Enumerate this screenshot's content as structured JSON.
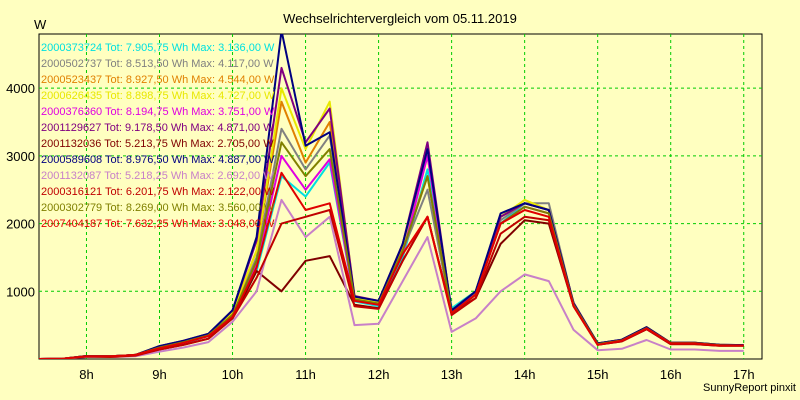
{
  "chart_data": {
    "type": "line",
    "title": "Wechselrichtervergleich vom 05.11.2019",
    "ylabel": "W",
    "xlabel": "",
    "footer": "SunnyReport pinxit",
    "grid": true,
    "legend_position": "top-left",
    "background": "#ffffc0",
    "grid_color": "#00cc00",
    "ylim": [
      0,
      4800
    ],
    "xlim": [
      7.35,
      17.25
    ],
    "yticks": [
      1000,
      2000,
      3000,
      4000
    ],
    "xticks": [
      {
        "value": 8,
        "label": "8h"
      },
      {
        "value": 9,
        "label": "9h"
      },
      {
        "value": 10,
        "label": "10h"
      },
      {
        "value": 11,
        "label": "11h"
      },
      {
        "value": 12,
        "label": "12h"
      },
      {
        "value": 13,
        "label": "13h"
      },
      {
        "value": 14,
        "label": "14h"
      },
      {
        "value": 15,
        "label": "15h"
      },
      {
        "value": 16,
        "label": "16h"
      },
      {
        "value": 17,
        "label": "17h"
      }
    ],
    "x": [
      7.33,
      7.67,
      8.0,
      8.33,
      8.67,
      9.0,
      9.33,
      9.67,
      10.0,
      10.33,
      10.67,
      11.0,
      11.33,
      11.67,
      12.0,
      12.33,
      12.67,
      13.0,
      13.33,
      13.67,
      14.0,
      14.33,
      14.67,
      15.0,
      15.33,
      15.67,
      16.0,
      16.33,
      16.67,
      17.0
    ],
    "series": [
      {
        "name": "2000373724 Tot: 7.905,75 Wh Max: 3.136,00 W",
        "color": "#00e0e0",
        "values": [
          0,
          5,
          40,
          40,
          60,
          150,
          230,
          340,
          600,
          1300,
          2700,
          2400,
          2900,
          850,
          780,
          1500,
          2800,
          750,
          1000,
          2000,
          2300,
          2200,
          800,
          220,
          270,
          450,
          230,
          230,
          200,
          200
        ]
      },
      {
        "name": "2000502737 Tot: 8.513,50 Wh Max: 4.117,00 W",
        "color": "#808080",
        "values": [
          0,
          5,
          45,
          40,
          60,
          170,
          250,
          350,
          650,
          1500,
          3400,
          2800,
          3300,
          900,
          830,
          1600,
          2500,
          680,
          950,
          2050,
          2300,
          2300,
          810,
          230,
          280,
          460,
          235,
          235,
          205,
          200
        ]
      },
      {
        "name": "2000523437 Tot: 8.927,50 Wh Max: 4.544,00 W",
        "color": "#e08000",
        "values": [
          0,
          5,
          45,
          40,
          60,
          180,
          260,
          360,
          680,
          1600,
          3800,
          2900,
          3500,
          920,
          850,
          1650,
          2700,
          690,
          980,
          2100,
          2300,
          2200,
          820,
          230,
          280,
          470,
          240,
          240,
          210,
          200
        ]
      },
      {
        "name": "2000626435 Tot: 8.898,75 Wh Max: 4.727,00 W",
        "color": "#e8e800",
        "values": [
          0,
          5,
          45,
          40,
          60,
          180,
          260,
          360,
          700,
          1600,
          4000,
          3100,
          3800,
          910,
          840,
          1600,
          3000,
          720,
          1000,
          2100,
          2350,
          2200,
          820,
          230,
          280,
          470,
          240,
          240,
          210,
          200
        ]
      },
      {
        "name": "2000376360 Tot: 8.194,75 Wh Max: 3.751,00 W",
        "color": "#e000e0",
        "values": [
          0,
          5,
          40,
          40,
          60,
          160,
          240,
          340,
          620,
          1400,
          3000,
          2500,
          2950,
          860,
          800,
          1550,
          3000,
          700,
          950,
          2000,
          2250,
          2150,
          800,
          220,
          270,
          450,
          230,
          230,
          200,
          200
        ]
      },
      {
        "name": "2001129627 Tot: 9.178,50 Wh Max: 4.871,00 W",
        "color": "#800080",
        "values": [
          0,
          5,
          45,
          40,
          60,
          190,
          270,
          370,
          720,
          1750,
          4300,
          3200,
          3700,
          930,
          860,
          1700,
          3200,
          700,
          1000,
          2100,
          2300,
          2200,
          830,
          230,
          285,
          470,
          240,
          240,
          210,
          205
        ]
      },
      {
        "name": "2001132036 Tot: 5.213,75 Wh Max: 2.705,00 W",
        "color": "#800000",
        "values": [
          0,
          5,
          30,
          30,
          50,
          140,
          210,
          300,
          600,
          1300,
          1000,
          1450,
          1520,
          800,
          750,
          1450,
          2100,
          680,
          900,
          1700,
          2050,
          2000,
          780,
          210,
          260,
          440,
          220,
          220,
          195,
          195
        ]
      },
      {
        "name": "2000589608 Tot: 8.976,50 Wh Max: 4.887,00 W",
        "color": "#000080",
        "values": [
          0,
          5,
          45,
          40,
          60,
          190,
          270,
          370,
          720,
          1800,
          4850,
          3150,
          3350,
          920,
          860,
          1700,
          3100,
          720,
          1000,
          2150,
          2300,
          2200,
          820,
          230,
          285,
          470,
          240,
          240,
          210,
          205
        ]
      },
      {
        "name": "2001132087 Tot: 5.218,25 Wh Max: 2.692,00 W",
        "color": "#c880c8",
        "values": [
          0,
          5,
          30,
          30,
          40,
          110,
          170,
          250,
          550,
          1000,
          2350,
          1800,
          2100,
          500,
          520,
          1150,
          1800,
          400,
          600,
          1000,
          1250,
          1150,
          430,
          130,
          150,
          280,
          140,
          140,
          120,
          120
        ]
      },
      {
        "name": "2000316121 Tot: 6.201,75 Wh Max: 2.122,00 W",
        "color": "#c00000",
        "values": [
          0,
          5,
          35,
          30,
          50,
          140,
          210,
          300,
          600,
          1200,
          2000,
          2100,
          2200,
          780,
          740,
          1450,
          2100,
          650,
          900,
          1850,
          2100,
          2050,
          780,
          210,
          260,
          440,
          220,
          220,
          195,
          195
        ]
      },
      {
        "name": "2000302779 Tot: 8.269,00 Wh Max: 3.560,00 W",
        "color": "#808000",
        "values": [
          0,
          5,
          40,
          40,
          60,
          170,
          250,
          350,
          650,
          1450,
          3200,
          2700,
          3100,
          880,
          820,
          1600,
          2700,
          680,
          950,
          2000,
          2250,
          2150,
          800,
          220,
          275,
          455,
          235,
          235,
          205,
          200
        ]
      },
      {
        "name": "2007404187 Tot: 7.632,25 Wh Max: 3.048,00 W",
        "color": "#e00000",
        "values": [
          0,
          5,
          40,
          40,
          60,
          160,
          240,
          340,
          620,
          1350,
          2750,
          2200,
          2300,
          860,
          800,
          1550,
          2100,
          680,
          950,
          2000,
          2200,
          2100,
          780,
          210,
          270,
          450,
          230,
          230,
          200,
          200
        ]
      }
    ]
  }
}
